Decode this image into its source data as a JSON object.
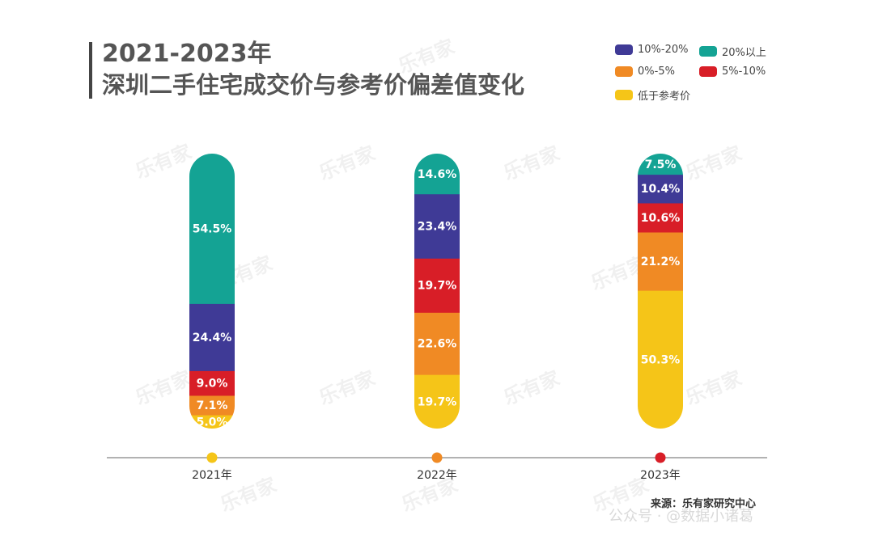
{
  "title": {
    "line1": "2021-2023年",
    "line2": "深圳二手住宅成交价与参考价偏差值变化"
  },
  "legend": [
    {
      "key": "10-20",
      "label": "10%-20%",
      "color": "#3f3a96"
    },
    {
      "key": "20plus",
      "label": "20%以上",
      "color": "#14a394"
    },
    {
      "key": "0-5",
      "label": "0%-5%",
      "color": "#f08a24"
    },
    {
      "key": "5-10",
      "label": "5%-10%",
      "color": "#d81e27"
    },
    {
      "key": "below",
      "label": "低于参考价",
      "color": "#f5c518"
    }
  ],
  "watermark": "乐有家",
  "source": "来源：乐有家研究中心",
  "overlay_text": "公众号 · @数据小诸葛",
  "chart_data": {
    "type": "bar",
    "stacked": true,
    "categories": [
      "2021年",
      "2022年",
      "2023年"
    ],
    "category_dot_colors": [
      "#f5c518",
      "#f08a24",
      "#d81e27"
    ],
    "series": [
      {
        "name": "低于参考价",
        "color": "#f5c518",
        "values": [
          5.0,
          19.7,
          50.3
        ],
        "labels": [
          "5.0%",
          "19.7%",
          "50.3%"
        ]
      },
      {
        "name": "0%-5%",
        "color": "#f08a24",
        "values": [
          7.1,
          22.6,
          21.2
        ],
        "labels": [
          "7.1%",
          "22.6%",
          "21.2%"
        ]
      },
      {
        "name": "5%-10%",
        "color": "#d81e27",
        "values": [
          9.0,
          19.7,
          10.6
        ],
        "labels": [
          "9.0%",
          "19.7%",
          "10.6%"
        ]
      },
      {
        "name": "10%-20%",
        "color": "#3f3a96",
        "values": [
          24.4,
          23.4,
          10.4
        ],
        "labels": [
          "24.4%",
          "23.4%",
          "10.4%"
        ]
      },
      {
        "name": "20%以上",
        "color": "#14a394",
        "values": [
          54.5,
          14.6,
          7.5
        ],
        "labels": [
          "54.5%",
          "14.6%",
          "7.5%"
        ]
      }
    ],
    "ylim": [
      0,
      100
    ]
  }
}
